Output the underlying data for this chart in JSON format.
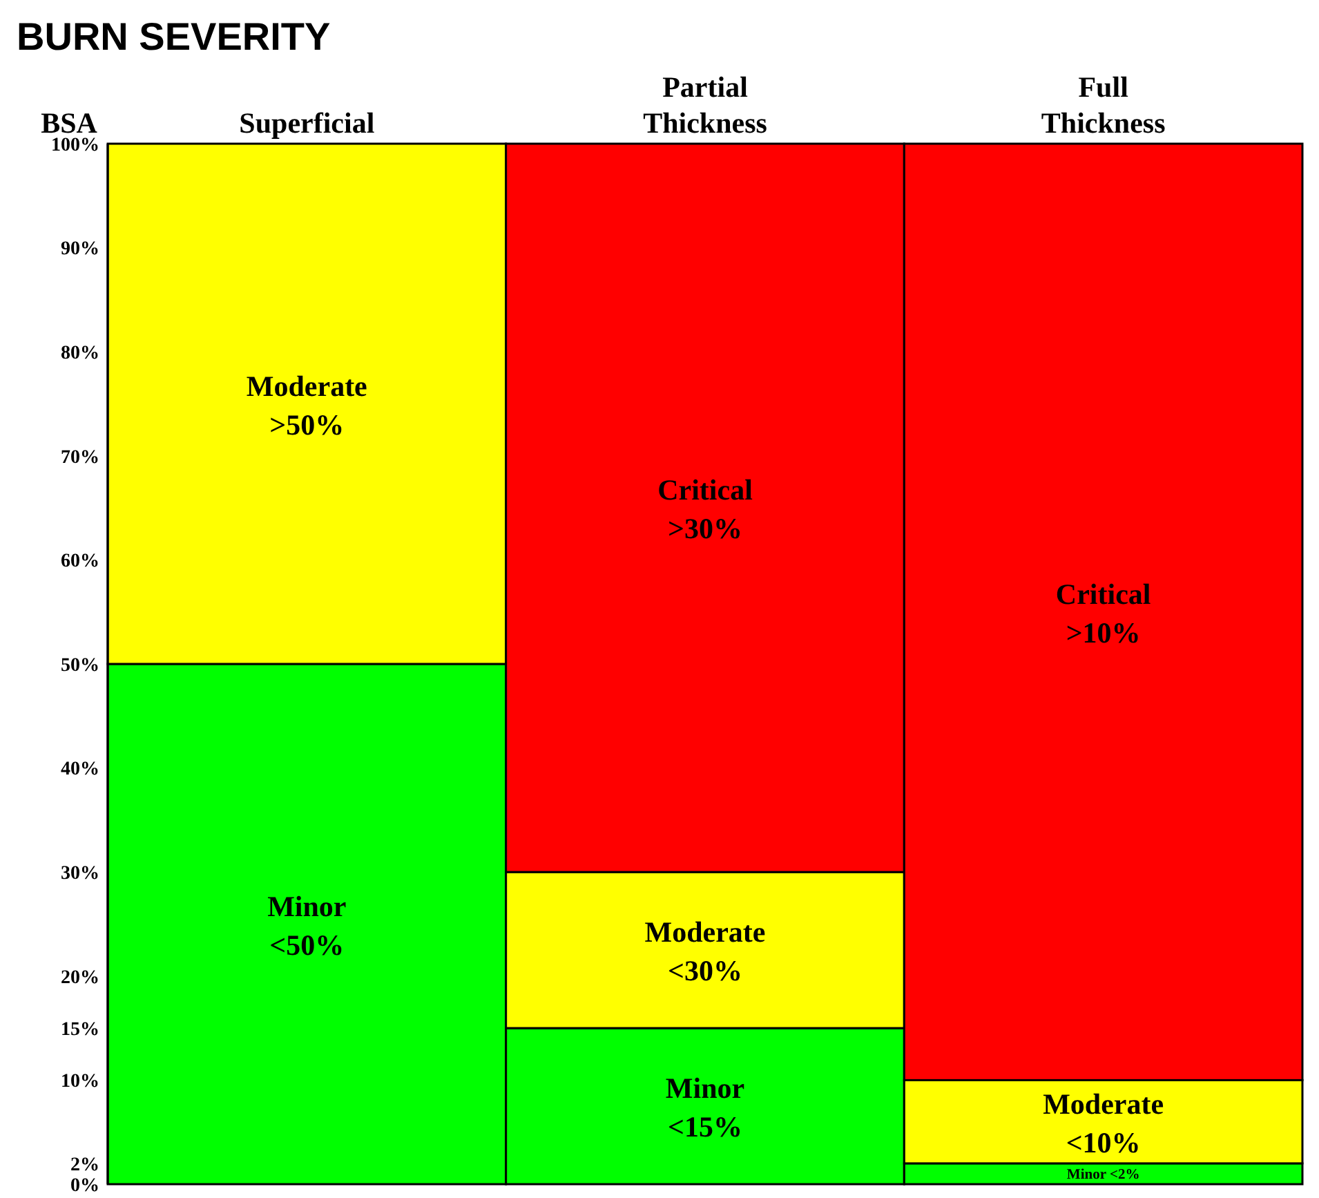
{
  "chart_data": {
    "type": "bar",
    "title": "BURN SEVERITY",
    "ylabel": "BSA",
    "stacked": true,
    "categories": [
      "Superficial",
      "Partial Thickness",
      "Full Thickness"
    ],
    "series": [
      {
        "name": "Minor",
        "color": "#00ff00",
        "values": [
          50,
          15,
          2
        ],
        "value_labels": [
          "<50%",
          "<15%",
          "<2%"
        ]
      },
      {
        "name": "Moderate",
        "color": "#ffff00",
        "values": [
          50,
          15,
          8
        ],
        "value_labels": [
          ">50%",
          "<30%",
          "<10%"
        ]
      },
      {
        "name": "Critical",
        "color": "#ff0000",
        "values": [
          null,
          70,
          90
        ],
        "value_labels": [
          null,
          ">30%",
          ">10%"
        ]
      }
    ],
    "ylim": [
      0,
      100
    ],
    "yticks": [
      {
        "value": 0,
        "label": "0%"
      },
      {
        "value": 2,
        "label": "2%"
      },
      {
        "value": 10,
        "label": "10%"
      },
      {
        "value": 15,
        "label": "15%"
      },
      {
        "value": 20,
        "label": "20%"
      },
      {
        "value": 30,
        "label": "30%"
      },
      {
        "value": 40,
        "label": "40%"
      },
      {
        "value": 50,
        "label": "50%"
      },
      {
        "value": 60,
        "label": "60%"
      },
      {
        "value": 70,
        "label": "70%"
      },
      {
        "value": 80,
        "label": "80%"
      },
      {
        "value": 90,
        "label": "90%"
      },
      {
        "value": 100,
        "label": "100%"
      }
    ]
  }
}
